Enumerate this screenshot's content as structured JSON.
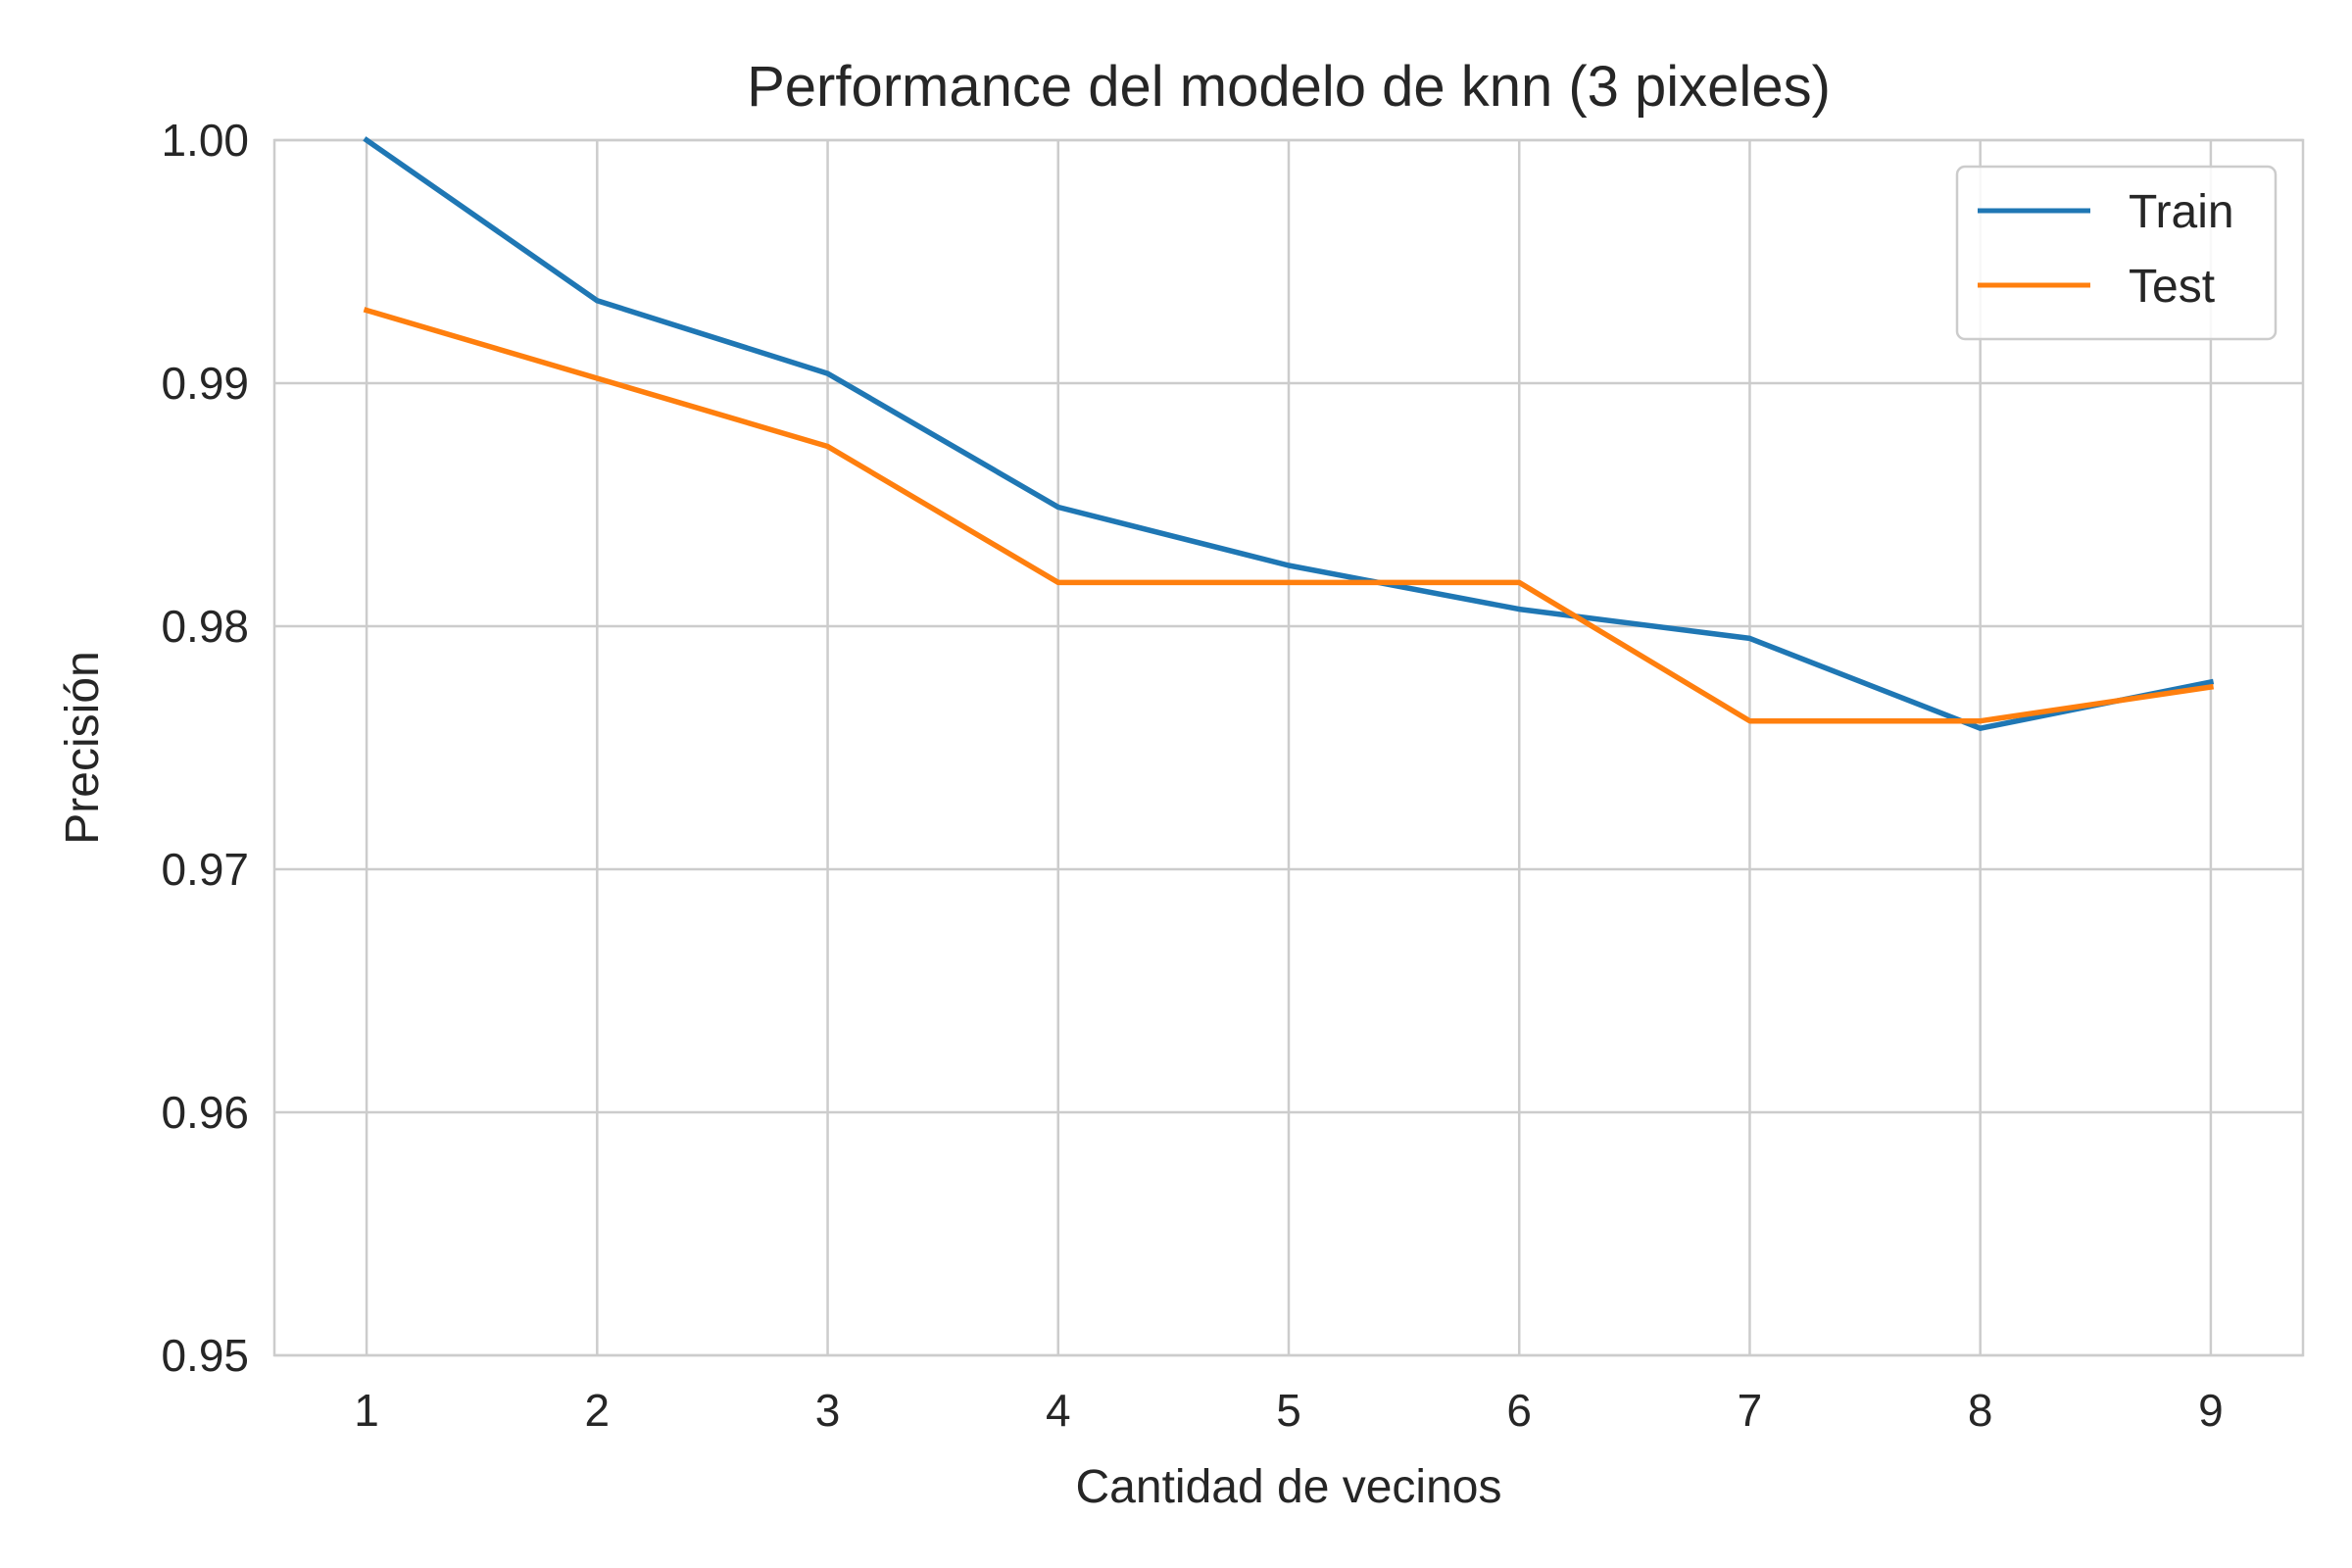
{
  "chart_data": {
    "type": "line",
    "title": "Performance del modelo de knn (3 pixeles)",
    "xlabel": "Cantidad de vecinos",
    "ylabel": "Precisión",
    "x": [
      1,
      2,
      3,
      4,
      5,
      6,
      7,
      8,
      9
    ],
    "xticks": [
      "1",
      "2",
      "3",
      "4",
      "5",
      "6",
      "7",
      "8",
      "9"
    ],
    "yticks": [
      "0.95",
      "0.96",
      "0.97",
      "0.98",
      "0.99",
      "1.00"
    ],
    "ylim": [
      0.95,
      1.0
    ],
    "xlim": [
      0.6,
      9.4
    ],
    "grid": true,
    "legend_position": "top-right",
    "series": [
      {
        "name": "Train",
        "color": "#1f77b4",
        "values": [
          1.0,
          0.9934,
          0.9904,
          0.9849,
          0.9825,
          0.9807,
          0.9795,
          0.9758,
          0.9777
        ]
      },
      {
        "name": "Test",
        "color": "#ff7f0e",
        "values": [
          0.993,
          0.9902,
          0.9874,
          0.9818,
          0.9818,
          0.9818,
          0.9761,
          0.9761,
          0.9775
        ]
      }
    ]
  }
}
